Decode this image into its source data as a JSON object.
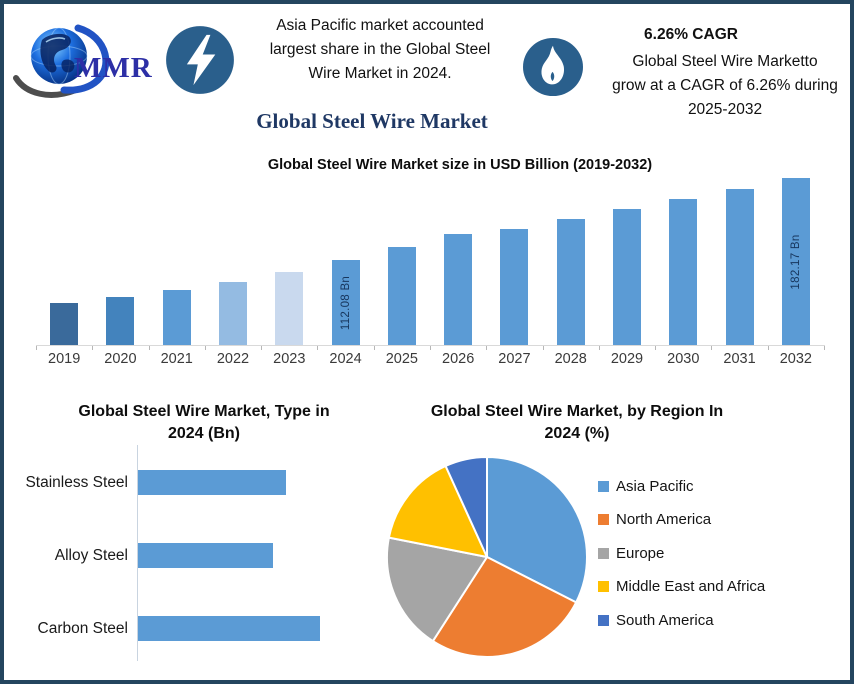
{
  "palette": {
    "border": "#24455f",
    "navy_title": "#1f3864",
    "icon_circle": "#2a5f8c",
    "bar_blue": "#5b9bd5",
    "logo_text_blue": "#2d2fa6",
    "data_label_navy": "#17365d"
  },
  "header": {
    "logo": {
      "text": "MMR"
    },
    "highlight_left": {
      "lines": [
        "Asia Pacific market accounted",
        "largest share in the Global Steel",
        "Wire Market in 2024."
      ]
    },
    "cagr_title": "6.26% CAGR",
    "highlight_right": {
      "lines": [
        "Global Steel Wire Marketto",
        "grow at a CAGR of 6.26% during",
        "2025-2032"
      ]
    }
  },
  "main_title": "Global Steel Wire Market",
  "chart_data": [
    {
      "id": "market-size-by-year",
      "type": "bar",
      "title": "Global Steel Wire Market size in USD Billion (2019-2032)",
      "categories": [
        "2019",
        "2020",
        "2021",
        "2022",
        "2023",
        "2024",
        "2025",
        "2026",
        "2027",
        "2028",
        "2029",
        "2030",
        "2031",
        "2032"
      ],
      "values": [
        75.8,
        80.9,
        86.9,
        93.7,
        102.3,
        112.08,
        123.6,
        134.7,
        139.0,
        147.5,
        156.0,
        164.5,
        173.1,
        182.17
      ],
      "unit": "USD Billion",
      "ylabel": "",
      "xlabel": "",
      "ylim": [
        40,
        185
      ],
      "grid": false,
      "data_labels": [
        "",
        "",
        "",
        "",
        "",
        "112.08 Bn",
        "",
        "",
        "",
        "",
        "",
        "",
        "",
        "182.17 Bn"
      ],
      "bar_colors": [
        "#3a6a9b",
        "#4383bd",
        "#5b9bd5",
        "#94bbe2",
        "#c9d9ee",
        "#5b9bd5",
        "#5b9bd5",
        "#5b9bd5",
        "#5b9bd5",
        "#5b9bd5",
        "#5b9bd5",
        "#5b9bd5",
        "#5b9bd5",
        "#5b9bd5"
      ]
    },
    {
      "id": "market-by-type",
      "type": "bar",
      "orientation": "horizontal",
      "title_lines": [
        "Global Steel Wire Market, Type in",
        "2024 (Bn)"
      ],
      "categories": [
        "Stainless Steel",
        "Alloy Steel",
        "Carbon Steel"
      ],
      "values": [
        35.7,
        32.6,
        43.8
      ],
      "unit": "USD Billion (estimated)",
      "xlim": [
        0,
        53
      ],
      "grid": false,
      "bar_color": "#5b9bd5"
    },
    {
      "id": "market-by-region",
      "type": "pie",
      "title_lines": [
        "Global Steel Wire Market, by Region In",
        "2024 (%)"
      ],
      "legend_position": "right",
      "slices": [
        {
          "label": "Asia Pacific",
          "value": 32.5,
          "color": "#5b9bd5"
        },
        {
          "label": "North America",
          "value": 26.6,
          "color": "#ed7d31"
        },
        {
          "label": "Europe",
          "value": 19.0,
          "color": "#a5a5a5"
        },
        {
          "label": "Middle East and Africa",
          "value": 15.1,
          "color": "#ffc000"
        },
        {
          "label": "South America",
          "value": 6.8,
          "color": "#4472c4"
        }
      ]
    }
  ]
}
